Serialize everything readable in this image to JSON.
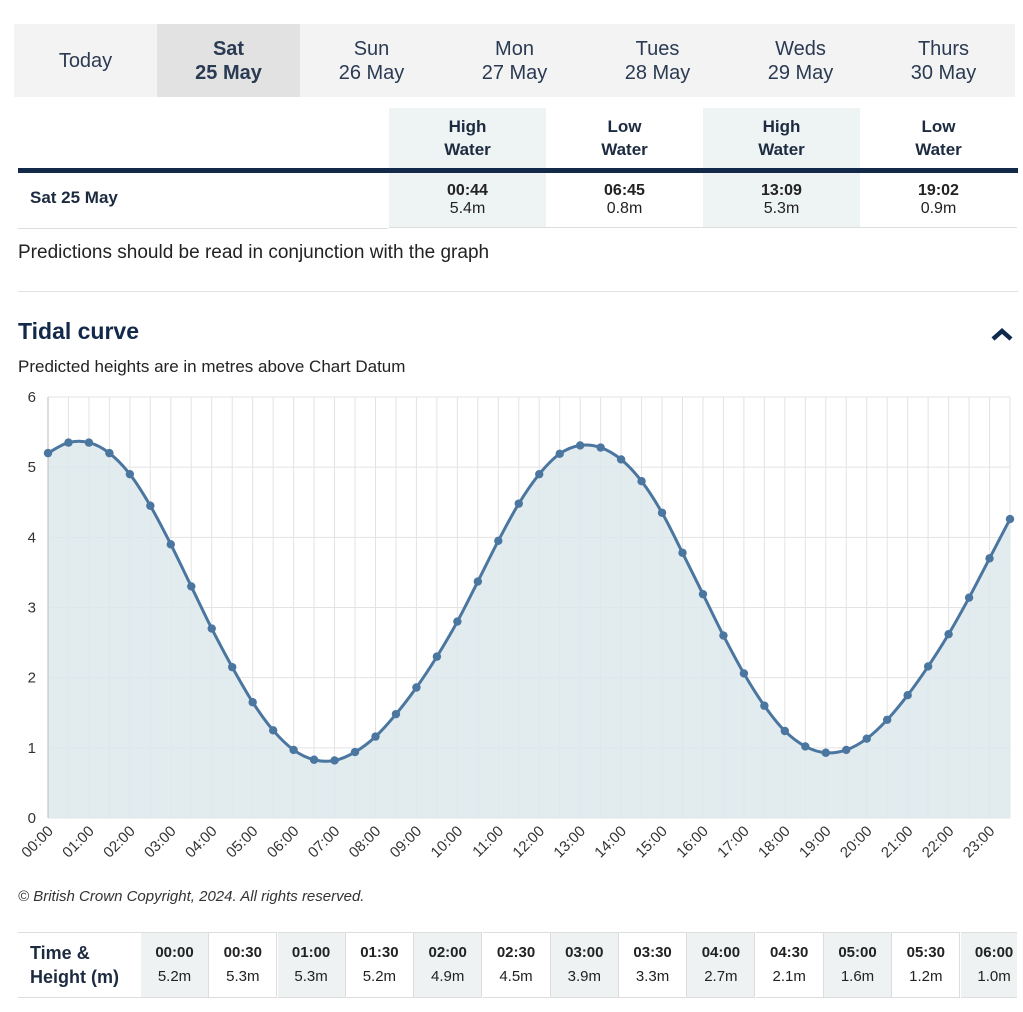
{
  "tabs": [
    {
      "line1": "Today"
    },
    {
      "line1": "Sat",
      "line2": "25 May"
    },
    {
      "line1": "Sun",
      "line2": "26 May"
    },
    {
      "line1": "Mon",
      "line2": "27 May"
    },
    {
      "line1": "Tues",
      "line2": "28 May"
    },
    {
      "line1": "Weds",
      "line2": "29 May"
    },
    {
      "line1": "Thurs",
      "line2": "30 May"
    }
  ],
  "tide_table": {
    "headers": [
      {
        "line1": "High",
        "line2": "Water"
      },
      {
        "line1": "Low",
        "line2": "Water"
      },
      {
        "line1": "High",
        "line2": "Water"
      },
      {
        "line1": "Low",
        "line2": "Water"
      }
    ],
    "row": {
      "date": "Sat 25 May",
      "cells": [
        {
          "time": "00:44",
          "height": "5.4m"
        },
        {
          "time": "06:45",
          "height": "0.8m"
        },
        {
          "time": "13:09",
          "height": "5.3m"
        },
        {
          "time": "19:02",
          "height": "0.9m"
        }
      ]
    }
  },
  "note": "Predictions should be read in conjunction with the graph",
  "section_title": "Tidal curve",
  "chart_data": {
    "type": "line",
    "subtitle": "Predicted heights are in metres above Chart Datum",
    "categories": [
      "00:00",
      null,
      "01:00",
      null,
      "02:00",
      null,
      "03:00",
      null,
      "04:00",
      null,
      "05:00",
      null,
      "06:00",
      null,
      "07:00",
      null,
      "08:00",
      null,
      "09:00",
      null,
      "10:00",
      null,
      "11:00",
      null,
      "12:00",
      null,
      "13:00",
      null,
      "14:00",
      null,
      "15:00",
      null,
      "16:00",
      null,
      "17:00",
      null,
      "18:00",
      null,
      "19:00",
      null,
      "20:00",
      null,
      "21:00",
      null,
      "22:00",
      null,
      "23:00",
      null
    ],
    "values": [
      5.2,
      5.35,
      5.35,
      5.2,
      4.9,
      4.45,
      3.9,
      3.3,
      2.7,
      2.15,
      1.65,
      1.25,
      0.97,
      0.83,
      0.82,
      0.94,
      1.16,
      1.48,
      1.86,
      2.3,
      2.8,
      3.37,
      3.95,
      4.48,
      4.9,
      5.19,
      5.31,
      5.28,
      5.11,
      4.8,
      4.35,
      3.78,
      3.19,
      2.6,
      2.06,
      1.6,
      1.24,
      1.02,
      0.93,
      0.97,
      1.13,
      1.4,
      1.75,
      2.16,
      2.62,
      3.14,
      3.7,
      4.26
    ],
    "ylim": [
      0,
      6
    ],
    "yticks": [
      0,
      1,
      2,
      3,
      4,
      5,
      6
    ],
    "grid": true,
    "color": "#4a76a0",
    "fill_color": "#dde9ec"
  },
  "copyright": "© British Crown Copyright, 2024. All rights reserved.",
  "height_table": {
    "header": {
      "line1": "Time &",
      "line2": "Height (m)"
    },
    "columns": [
      {
        "time": "00:00",
        "height": "5.2m"
      },
      {
        "time": "00:30",
        "height": "5.3m"
      },
      {
        "time": "01:00",
        "height": "5.3m"
      },
      {
        "time": "01:30",
        "height": "5.2m"
      },
      {
        "time": "02:00",
        "height": "4.9m"
      },
      {
        "time": "02:30",
        "height": "4.5m"
      },
      {
        "time": "03:00",
        "height": "3.9m"
      },
      {
        "time": "03:30",
        "height": "3.3m"
      },
      {
        "time": "04:00",
        "height": "2.7m"
      },
      {
        "time": "04:30",
        "height": "2.1m"
      },
      {
        "time": "05:00",
        "height": "1.6m"
      },
      {
        "time": "05:30",
        "height": "1.2m"
      },
      {
        "time": "06:00",
        "height": "1.0m"
      }
    ]
  }
}
